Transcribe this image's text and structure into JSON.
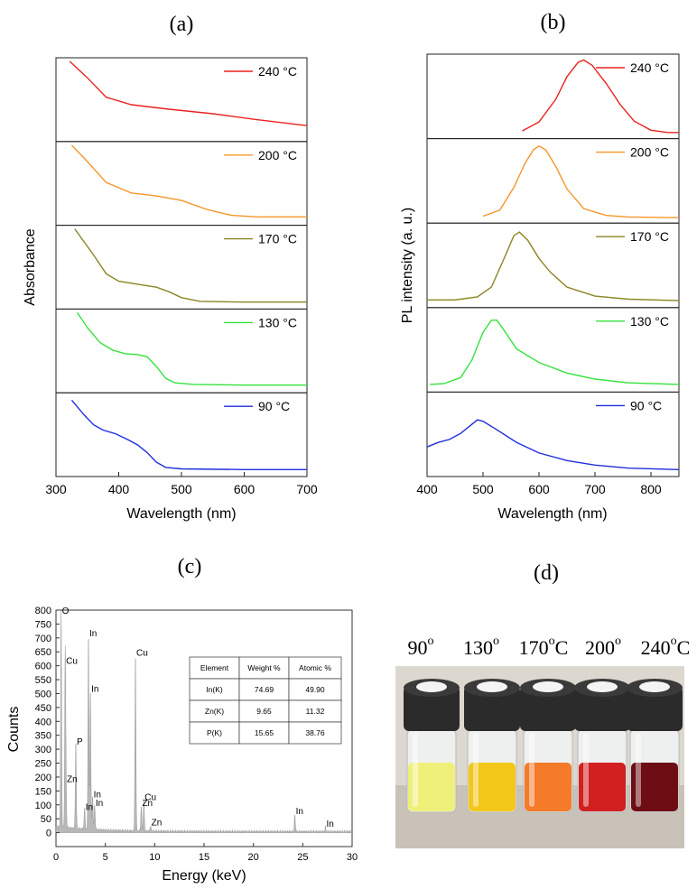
{
  "panels": {
    "a": {
      "label": "(a)",
      "chart_data": {
        "type": "line",
        "xlabel": "Wavelength (nm)",
        "ylabel": "Absorbance",
        "xlim": [
          300,
          700
        ],
        "xticks": [
          "300",
          "400",
          "500",
          "600",
          "700"
        ],
        "stacked": true,
        "series": [
          {
            "name": "240 °C",
            "color": "#e8231f",
            "points": [
              [
                322,
                1.0
              ],
              [
                350,
                0.78
              ],
              [
                380,
                0.52
              ],
              [
                420,
                0.42
              ],
              [
                480,
                0.36
              ],
              [
                550,
                0.3
              ],
              [
                620,
                0.22
              ],
              [
                700,
                0.14
              ]
            ]
          },
          {
            "name": "200 °C",
            "color": "#f5962a",
            "points": [
              [
                325,
                1.0
              ],
              [
                350,
                0.78
              ],
              [
                380,
                0.5
              ],
              [
                420,
                0.36
              ],
              [
                460,
                0.32
              ],
              [
                500,
                0.26
              ],
              [
                540,
                0.14
              ],
              [
                580,
                0.06
              ],
              [
                620,
                0.04
              ],
              [
                700,
                0.04
              ]
            ]
          },
          {
            "name": "170 °C",
            "color": "#8b8522",
            "points": [
              [
                330,
                1.0
              ],
              [
                360,
                0.65
              ],
              [
                380,
                0.4
              ],
              [
                400,
                0.3
              ],
              [
                430,
                0.26
              ],
              [
                460,
                0.22
              ],
              [
                480,
                0.16
              ],
              [
                500,
                0.08
              ],
              [
                530,
                0.03
              ],
              [
                600,
                0.02
              ],
              [
                700,
                0.02
              ]
            ]
          },
          {
            "name": "130 °C",
            "color": "#35e23c",
            "points": [
              [
                334,
                1.0
              ],
              [
                350,
                0.8
              ],
              [
                370,
                0.6
              ],
              [
                390,
                0.5
              ],
              [
                410,
                0.45
              ],
              [
                430,
                0.44
              ],
              [
                445,
                0.41
              ],
              [
                460,
                0.28
              ],
              [
                475,
                0.12
              ],
              [
                490,
                0.06
              ],
              [
                520,
                0.04
              ],
              [
                600,
                0.03
              ],
              [
                700,
                0.03
              ]
            ]
          },
          {
            "name": "90 °C",
            "color": "#1f2fdc",
            "points": [
              [
                325,
                0.95
              ],
              [
                345,
                0.75
              ],
              [
                360,
                0.62
              ],
              [
                375,
                0.55
              ],
              [
                395,
                0.5
              ],
              [
                415,
                0.42
              ],
              [
                430,
                0.35
              ],
              [
                445,
                0.25
              ],
              [
                460,
                0.12
              ],
              [
                475,
                0.05
              ],
              [
                500,
                0.03
              ],
              [
                600,
                0.02
              ],
              [
                700,
                0.02
              ]
            ]
          }
        ]
      }
    },
    "b": {
      "label": "(b)",
      "chart_data": {
        "type": "line",
        "xlabel": "Wavelength (nm)",
        "ylabel": "PL intensity (a. u.)",
        "xlim": [
          400,
          850
        ],
        "xticks": [
          "400",
          "500",
          "600",
          "700",
          "800"
        ],
        "stacked": true,
        "series": [
          {
            "name": "240 °C",
            "color": "#e8231f",
            "points": [
              [
                570,
                0.03
              ],
              [
                600,
                0.15
              ],
              [
                630,
                0.45
              ],
              [
                650,
                0.75
              ],
              [
                670,
                0.94
              ],
              [
                680,
                0.97
              ],
              [
                695,
                0.9
              ],
              [
                720,
                0.66
              ],
              [
                745,
                0.38
              ],
              [
                770,
                0.16
              ],
              [
                800,
                0.04
              ],
              [
                830,
                0.01
              ],
              [
                850,
                0.01
              ]
            ]
          },
          {
            "name": "200 °C",
            "color": "#f5962a",
            "points": [
              [
                500,
                0.02
              ],
              [
                530,
                0.1
              ],
              [
                555,
                0.4
              ],
              [
                575,
                0.72
              ],
              [
                590,
                0.9
              ],
              [
                600,
                0.95
              ],
              [
                612,
                0.9
              ],
              [
                630,
                0.68
              ],
              [
                650,
                0.38
              ],
              [
                680,
                0.12
              ],
              [
                720,
                0.03
              ],
              [
                760,
                0.01
              ],
              [
                850,
                0.0
              ]
            ]
          },
          {
            "name": "170 °C",
            "color": "#8b8522",
            "points": [
              [
                400,
                0.03
              ],
              [
                450,
                0.03
              ],
              [
                490,
                0.07
              ],
              [
                515,
                0.2
              ],
              [
                540,
                0.62
              ],
              [
                555,
                0.88
              ],
              [
                565,
                0.93
              ],
              [
                580,
                0.82
              ],
              [
                600,
                0.58
              ],
              [
                620,
                0.4
              ],
              [
                650,
                0.2
              ],
              [
                700,
                0.08
              ],
              [
                760,
                0.04
              ],
              [
                850,
                0.02
              ]
            ]
          },
          {
            "name": "130 °C",
            "color": "#35e23c",
            "points": [
              [
                405,
                0.03
              ],
              [
                430,
                0.04
              ],
              [
                460,
                0.12
              ],
              [
                480,
                0.35
              ],
              [
                500,
                0.72
              ],
              [
                515,
                0.88
              ],
              [
                525,
                0.88
              ],
              [
                540,
                0.72
              ],
              [
                560,
                0.5
              ],
              [
                600,
                0.32
              ],
              [
                650,
                0.18
              ],
              [
                700,
                0.1
              ],
              [
                760,
                0.05
              ],
              [
                850,
                0.03
              ]
            ]
          },
          {
            "name": "90 °C",
            "color": "#1f2fdc",
            "points": [
              [
                400,
                0.32
              ],
              [
                420,
                0.38
              ],
              [
                440,
                0.42
              ],
              [
                460,
                0.5
              ],
              [
                480,
                0.62
              ],
              [
                490,
                0.68
              ],
              [
                500,
                0.66
              ],
              [
                520,
                0.57
              ],
              [
                560,
                0.38
              ],
              [
                600,
                0.24
              ],
              [
                650,
                0.14
              ],
              [
                700,
                0.08
              ],
              [
                760,
                0.04
              ],
              [
                850,
                0.02
              ]
            ]
          }
        ]
      }
    },
    "c": {
      "label": "(c)",
      "chart_data": {
        "type": "area",
        "xlabel": "Energy (keV)",
        "ylabel": "Counts",
        "xlim": [
          0,
          30
        ],
        "ylim": [
          -50,
          800
        ],
        "xticks": [
          "0",
          "5",
          "10",
          "15",
          "20",
          "25",
          "30"
        ],
        "yticks": [
          "0",
          "50",
          "100",
          "150",
          "200",
          "250",
          "300",
          "350",
          "400",
          "450",
          "500",
          "550",
          "600",
          "650",
          "700",
          "750",
          "800"
        ],
        "fill_color": "#b8b8b8",
        "peaks": [
          {
            "label": "O",
            "x": 0.52,
            "y": 780
          },
          {
            "label": "Cu",
            "x": 0.93,
            "y": 600
          },
          {
            "label": "Zn",
            "x": 1.01,
            "y": 175
          },
          {
            "label": "P",
            "x": 2.01,
            "y": 310
          },
          {
            "label": "In",
            "x": 2.9,
            "y": 75
          },
          {
            "label": "In",
            "x": 3.29,
            "y": 700
          },
          {
            "label": "In",
            "x": 3.49,
            "y": 500
          },
          {
            "label": "In",
            "x": 3.71,
            "y": 120
          },
          {
            "label": "In",
            "x": 3.92,
            "y": 90
          },
          {
            "label": "Cu",
            "x": 8.05,
            "y": 630
          },
          {
            "label": "Zn",
            "x": 8.64,
            "y": 90
          },
          {
            "label": "Cu",
            "x": 8.9,
            "y": 110
          },
          {
            "label": "Zn",
            "x": 9.57,
            "y": 20
          },
          {
            "label": "In",
            "x": 24.2,
            "y": 60
          },
          {
            "label": "In",
            "x": 27.3,
            "y": 15
          }
        ]
      },
      "table": {
        "headers": [
          "Element",
          "Weight %",
          "Atomic %"
        ],
        "rows": [
          [
            "In(K)",
            "74.69",
            "49.90"
          ],
          [
            "Zn(K)",
            "9.65",
            "11.32"
          ],
          [
            "P(K)",
            "15.65",
            "38.76"
          ]
        ]
      }
    },
    "d": {
      "label": "(d)",
      "vials": [
        {
          "label": "90",
          "sup": "o",
          "unit": "",
          "liquid": "#eef07a"
        },
        {
          "label": "130",
          "sup": "o",
          "unit": "",
          "liquid": "#f3c71a"
        },
        {
          "label": "170",
          "sup": "o",
          "unit": "C",
          "liquid": "#f57a2a"
        },
        {
          "label": "200",
          "sup": "o",
          "unit": "",
          "liquid": "#d21f1f"
        },
        {
          "label": "240",
          "sup": "o",
          "unit": "C",
          "liquid": "#6e0e14"
        }
      ]
    }
  }
}
